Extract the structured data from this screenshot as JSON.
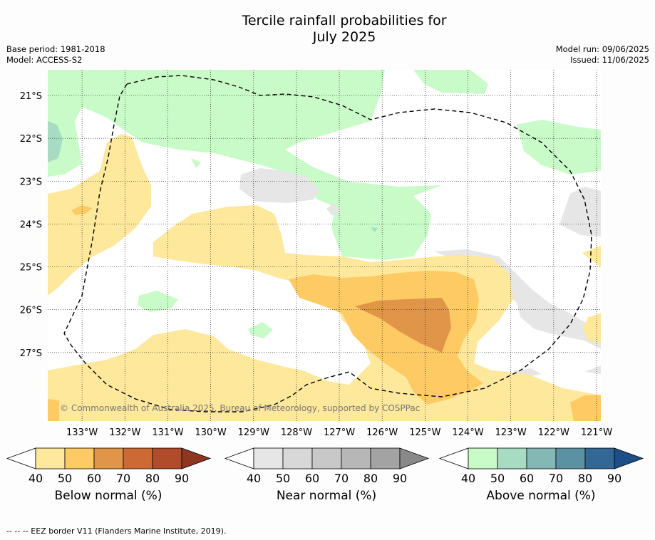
{
  "chart_data": {
    "type": "heatmap",
    "title_line1": "Tercile rainfall probabilities for",
    "title_line2": "July 2025",
    "base_period": "Base period: 1981-2018",
    "model": "Model: ACCESS-S2",
    "model_run": "Model run: 09/06/2025",
    "issued": "Issued: 11/06/2025",
    "x_ticks": [
      "133°W",
      "132°W",
      "131°W",
      "130°W",
      "129°W",
      "128°W",
      "127°W",
      "126°W",
      "125°W",
      "124°W",
      "123°W",
      "122°W",
      "121°W"
    ],
    "y_ticks": [
      "21°S",
      "22°S",
      "23°S",
      "24°S",
      "25°S",
      "26°S",
      "27°S"
    ],
    "xlim": [
      -133.8,
      -120.9
    ],
    "ylim": [
      -28.6,
      -20.4
    ],
    "copyright": "© Commonwealth of Australia 2025, Bureau of Meteorology, supported by COSPPac",
    "colorbars": [
      {
        "label": "Below normal (%)",
        "ticks": [
          "40",
          "50",
          "60",
          "70",
          "80",
          "90"
        ],
        "colors": [
          "#fee89c",
          "#fdca63",
          "#e09548",
          "#cd6a33",
          "#b04c2a",
          "#8f3520"
        ]
      },
      {
        "label": "Near normal (%)",
        "ticks": [
          "40",
          "50",
          "60",
          "70",
          "80",
          "90"
        ],
        "colors": [
          "#e6e6e6",
          "#d8d8d8",
          "#c8c8c8",
          "#b7b7b7",
          "#a3a3a3",
          "#898989"
        ]
      },
      {
        "label": "Above normal (%)",
        "ticks": [
          "40",
          "50",
          "60",
          "70",
          "80",
          "90"
        ],
        "colors": [
          "#c9fbc9",
          "#a7dcc2",
          "#84b8b5",
          "#5a92a3",
          "#336896",
          "#1d4e88"
        ]
      }
    ],
    "legend_note": "-- -- -- EEZ border V11 (Flanders Marine Institute, 2019)."
  }
}
